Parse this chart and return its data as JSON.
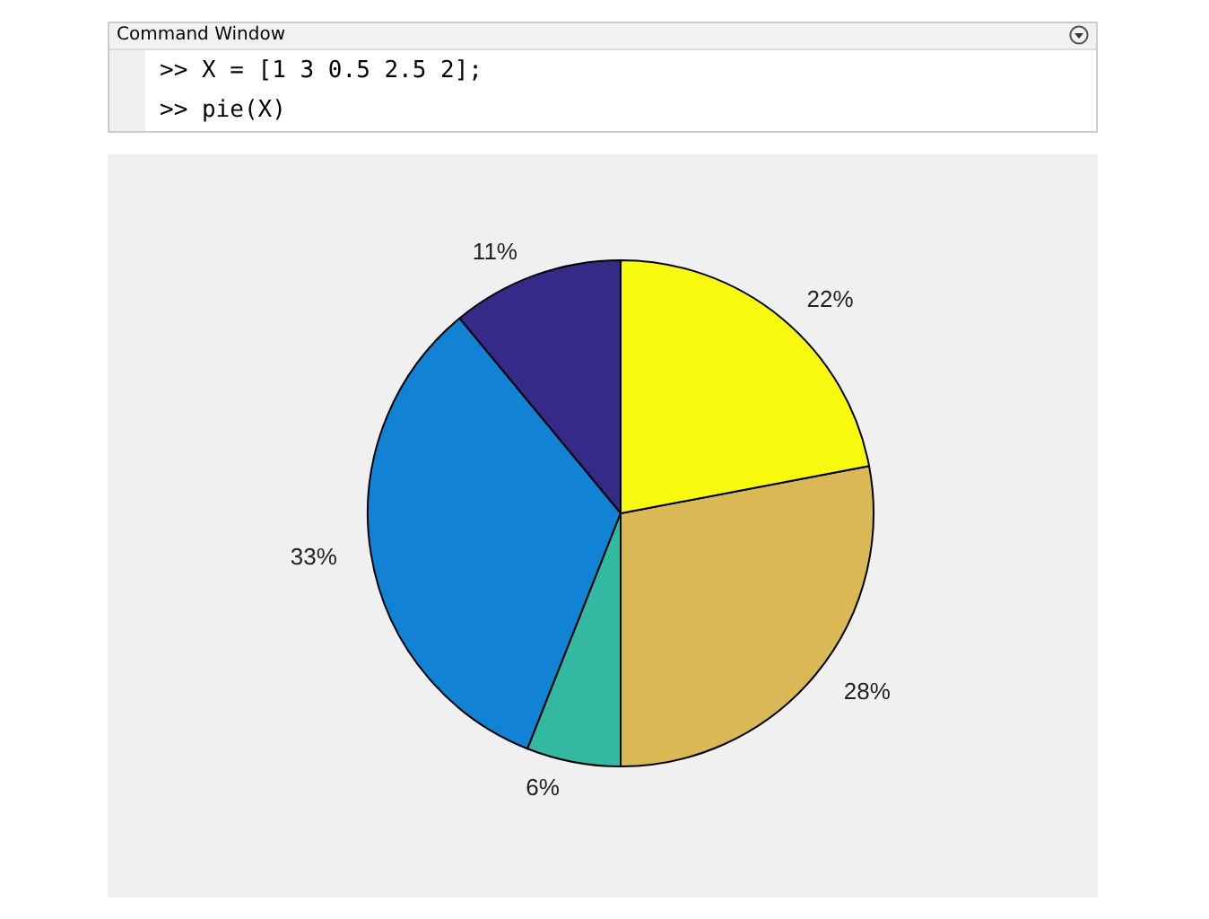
{
  "chart_data": {
    "type": "pie",
    "categories": [
      null,
      null,
      null,
      null,
      null
    ],
    "values": [
      11,
      33,
      6,
      28,
      22
    ],
    "value_labels": [
      "11%",
      "33%",
      "6%",
      "28%",
      "22%"
    ],
    "colors": [
      "#352a87",
      "#1283d4",
      "#33b8a1",
      "#d9b855",
      "#f8fa0d"
    ],
    "annotations": [
      "Command Window",
      ">> X = [1 3 0.5 2.5 2];",
      ">> pie(X)"
    ]
  }
}
